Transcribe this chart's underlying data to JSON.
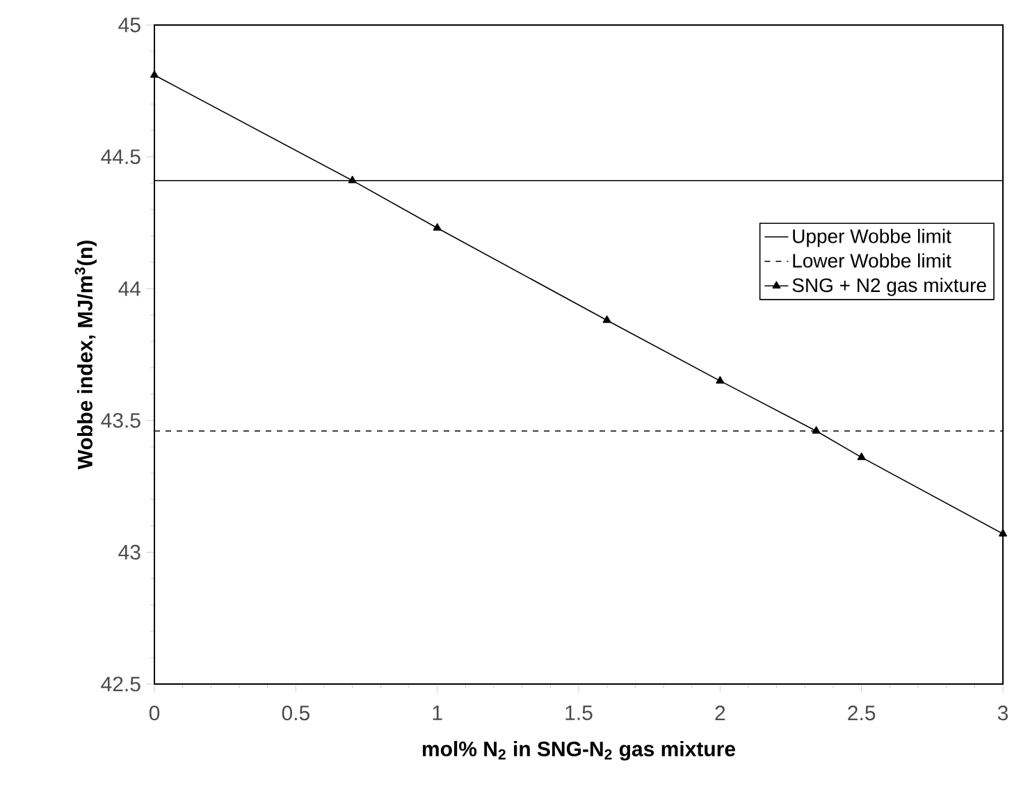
{
  "chart_data": {
    "type": "line",
    "xlabel": "mol% N$_{2}$ in SNG-N$_{2}$ gas mixture",
    "ylabel": "Wobbe index, MJ/m$^{3}$(n)",
    "xlim": [
      0,
      3
    ],
    "ylim": [
      42.5,
      45
    ],
    "xticks": [
      0,
      0.5,
      1,
      1.5,
      2,
      2.5,
      3
    ],
    "yticks": [
      42.5,
      43,
      43.5,
      44,
      44.5,
      45
    ],
    "grid": false,
    "legend": "right",
    "series": [
      {
        "name": "Upper Wobbe limit",
        "color": "#000000",
        "x": [
          0,
          3
        ],
        "values": [
          44.41,
          44.41
        ],
        "line_style": "solid",
        "marker": "none"
      },
      {
        "name": "Lower Wobbe limit",
        "color": "#000000",
        "x": [
          0,
          3
        ],
        "values": [
          43.46,
          43.46
        ],
        "line_style": "dashed",
        "marker": "none"
      },
      {
        "name": "SNG + N2 gas mixture",
        "color": "#000000",
        "x": [
          0,
          0.7,
          1,
          1.6,
          2,
          2.34,
          2.5,
          3
        ],
        "values": [
          44.81,
          44.41,
          44.23,
          43.88,
          43.65,
          43.46,
          43.36,
          43.07
        ],
        "line_style": "solid",
        "marker": "triangle"
      }
    ]
  }
}
